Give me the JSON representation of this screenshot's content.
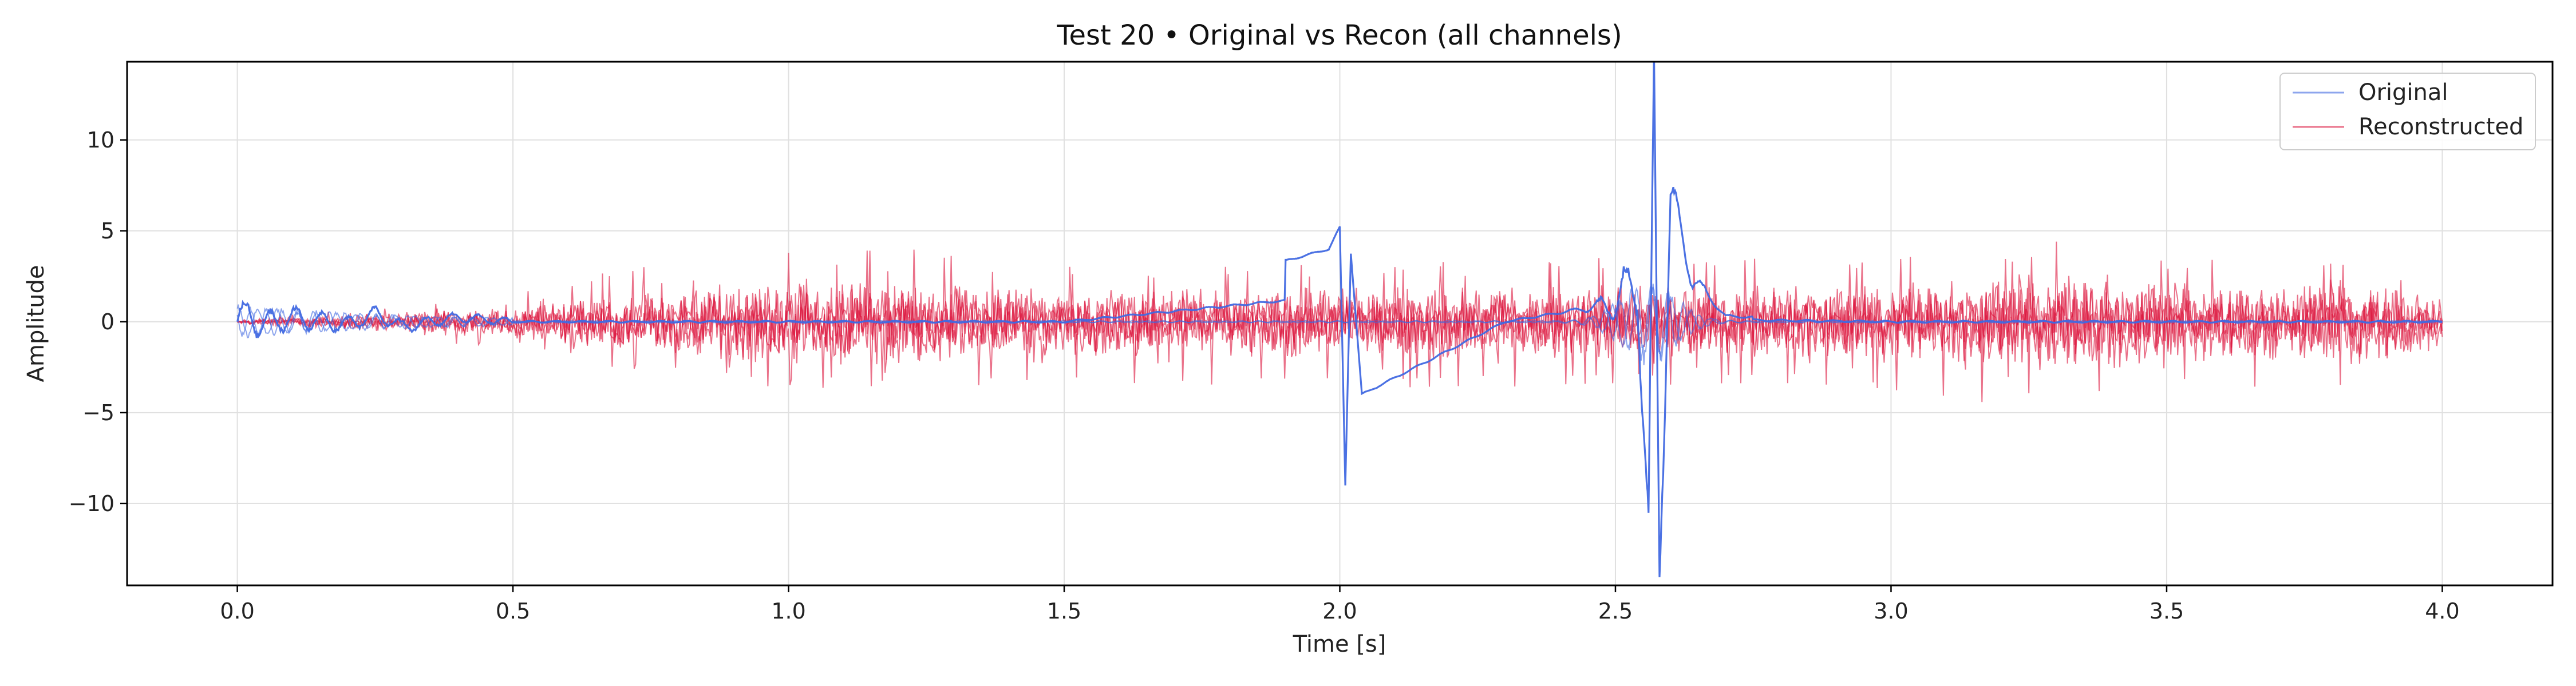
{
  "chart_data": {
    "type": "line",
    "title": "Test 20 • Original vs Recon (all channels)",
    "xlabel": "Time [s]",
    "ylabel": "Amplitude",
    "xlim": [
      -0.2,
      4.2
    ],
    "ylim": [
      -14.5,
      14.3
    ],
    "xticks": [
      0.0,
      0.5,
      1.0,
      1.5,
      2.0,
      2.5,
      3.0,
      3.5,
      4.0
    ],
    "xtick_labels": [
      "0.0",
      "0.5",
      "1.0",
      "1.5",
      "2.0",
      "2.5",
      "3.0",
      "3.5",
      "4.0"
    ],
    "yticks": [
      -10,
      -5,
      0,
      5,
      10
    ],
    "ytick_labels": [
      "−10",
      "−5",
      "0",
      "5",
      "10"
    ],
    "grid": true,
    "legend_position": "top-right",
    "series": [
      {
        "name": "Original",
        "color": "#4169E1",
        "description_points": {
          "x": [
            0.0,
            0.02,
            0.04,
            0.1,
            0.2,
            0.25,
            0.3,
            0.4,
            0.5,
            1.0,
            1.5,
            1.98,
            2.0,
            2.01,
            2.02,
            2.04,
            2.3,
            2.5,
            2.54,
            2.56,
            2.57,
            2.58,
            2.6,
            2.64,
            2.7,
            3.0,
            3.5,
            4.0
          ],
          "y": [
            0.0,
            1.5,
            -0.6,
            0.7,
            -0.5,
            1.3,
            -0.8,
            0.7,
            0.0,
            0.0,
            0.0,
            4.0,
            5.2,
            -9.0,
            3.8,
            -4.0,
            0.0,
            1.0,
            2.4,
            -12.0,
            13.2,
            -13.2,
            7.0,
            2.4,
            0.3,
            0.0,
            0.0,
            0.0
          ]
        }
      },
      {
        "name": "Reconstructed",
        "color": "#DC143C",
        "description_points": {
          "x": [
            0.0,
            0.5,
            0.8,
            1.12,
            1.5,
            2.0,
            2.5,
            2.9,
            3.2,
            3.42,
            3.5,
            3.9,
            4.0
          ],
          "y_envelope_upper": [
            0.2,
            1.5,
            3.8,
            4.6,
            3.2,
            3.2,
            3.6,
            3.5,
            3.8,
            5.6,
            3.5,
            3.8,
            2.5
          ],
          "y_envelope_lower": [
            -0.2,
            -1.5,
            -3.2,
            -4.0,
            -3.5,
            -3.8,
            -3.5,
            -3.5,
            -4.6,
            -3.8,
            -3.5,
            -4.0,
            -2.5
          ]
        }
      }
    ]
  }
}
